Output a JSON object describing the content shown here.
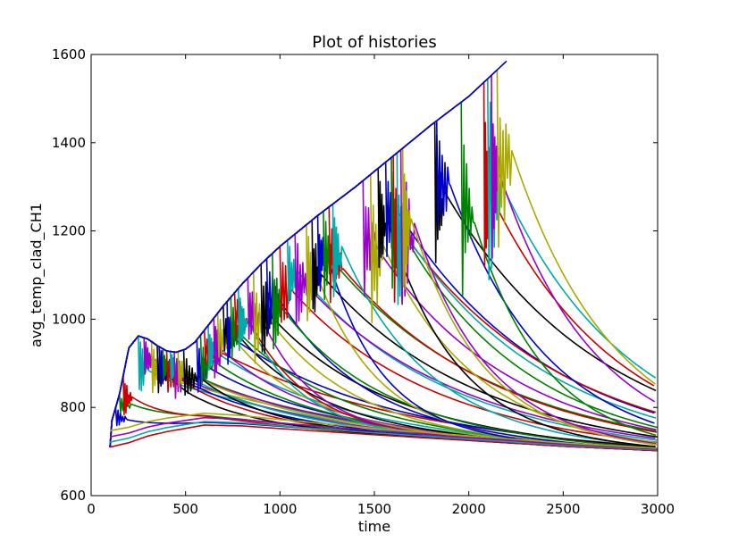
{
  "chart_data": {
    "type": "line",
    "title": "Plot of histories",
    "xlabel": "time",
    "ylabel": "avg_temp_clad_CH1",
    "xlim": [
      0,
      3000
    ],
    "ylim": [
      600,
      1600
    ],
    "xticks": [
      0,
      500,
      1000,
      1500,
      2000,
      2500,
      3000
    ],
    "yticks": [
      600,
      800,
      1000,
      1200,
      1400,
      1600
    ],
    "grid": false,
    "legend": "none",
    "palette": [
      "#0000cc",
      "#008000",
      "#cc0000",
      "#00aaaa",
      "#9900cc",
      "#aaaa00",
      "#000000"
    ],
    "envelope": [
      [
        100,
        710
      ],
      [
        110,
        770
      ],
      [
        150,
        830
      ],
      [
        200,
        935
      ],
      [
        250,
        962
      ],
      [
        300,
        955
      ],
      [
        350,
        940
      ],
      [
        400,
        928
      ],
      [
        450,
        925
      ],
      [
        500,
        932
      ],
      [
        550,
        948
      ],
      [
        600,
        975
      ],
      [
        700,
        1030
      ],
      [
        800,
        1080
      ],
      [
        900,
        1125
      ],
      [
        1000,
        1165
      ],
      [
        1200,
        1235
      ],
      [
        1400,
        1300
      ],
      [
        1600,
        1370
      ],
      [
        1800,
        1440
      ],
      [
        2000,
        1505
      ],
      [
        2200,
        1585
      ]
    ],
    "lower_drift": [
      [
        100,
        710
      ],
      [
        200,
        720
      ],
      [
        300,
        735
      ],
      [
        400,
        745
      ],
      [
        600,
        760
      ],
      [
        800,
        758
      ],
      [
        1000,
        752
      ],
      [
        1500,
        738
      ],
      [
        2000,
        725
      ],
      [
        2500,
        712
      ],
      [
        3000,
        702
      ]
    ],
    "event_times": [
      130,
      150,
      170,
      250,
      280,
      320,
      350,
      360,
      380,
      400,
      420,
      440,
      460,
      490,
      560,
      580,
      600,
      620,
      650,
      670,
      700,
      720,
      740,
      760,
      780,
      830,
      860,
      900,
      930,
      960,
      1000,
      1040,
      1080,
      1140,
      1170,
      1200,
      1230,
      1260,
      1280,
      1440,
      1480,
      1520,
      1560,
      1590,
      1600,
      1620,
      1640,
      1650,
      1820,
      1830,
      1960,
      2080,
      2100,
      2120,
      2150
    ],
    "series_shown": "many overlapping colored histories, one per event time"
  }
}
